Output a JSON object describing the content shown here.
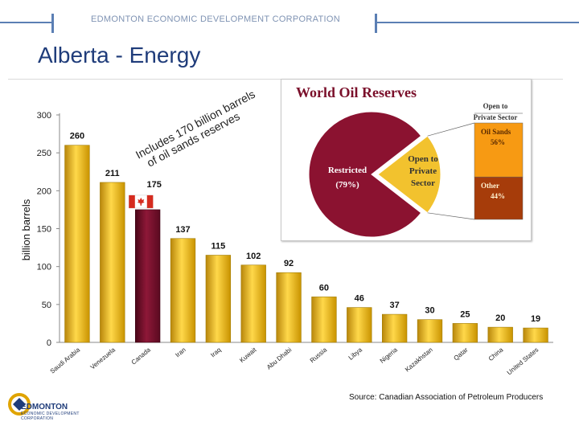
{
  "header": {
    "org_name": "EDMONTON ECONOMIC DEVELOPMENT CORPORATION",
    "title": "Alberta - Energy"
  },
  "source": "Source: Canadian Association of Petroleum Producers",
  "logo": {
    "line1": "EDMONTON",
    "line2": "ECONOMIC DEVELOPMENT",
    "line3": "CORPORATION"
  },
  "chart_data": [
    {
      "type": "bar",
      "title": "",
      "xlabel": "",
      "ylabel": "billion barrels",
      "ylim": [
        0,
        300
      ],
      "yticks": [
        "0",
        "50",
        "100",
        "150",
        "200",
        "250",
        "300"
      ],
      "categories": [
        "Saudi Arabia",
        "Venezuela",
        "Canada",
        "Iran",
        "Iraq",
        "Kuwait",
        "Abu Dhabi",
        "Russia",
        "Libya",
        "Nigeria",
        "Kazakhstan",
        "Qatar",
        "China",
        "United States"
      ],
      "values": [
        260,
        211,
        175,
        137,
        115,
        102,
        92,
        60,
        46,
        37,
        30,
        25,
        20,
        19
      ],
      "data_labels": [
        "260",
        "211",
        "175",
        "137",
        "115",
        "102",
        "92",
        "60",
        "46",
        "37",
        "30",
        "25",
        "20",
        "19"
      ],
      "highlight_category": "Canada",
      "annotation": [
        "Includes 170 billion barrels",
        "of oil sands reserves"
      ],
      "colors": {
        "bar": "#e8b810",
        "highlight": "#7a0f2a"
      },
      "grid": false
    },
    {
      "type": "pie",
      "title": "World Oil Reserves",
      "slices": [
        {
          "label": [
            "Restricted",
            "(79%)"
          ],
          "value": 79,
          "color": "#8b1230"
        },
        {
          "label": [
            "Open to",
            "Private",
            "Sector"
          ],
          "value": 21,
          "color": "#f2c22e"
        }
      ],
      "breakdown": {
        "header": [
          "Open to",
          "Private Sector"
        ],
        "items": [
          {
            "label": [
              "Oil Sands",
              "56%"
            ],
            "value": 56,
            "color": "#f79a13"
          },
          {
            "label": [
              "Other",
              "44%"
            ],
            "value": 44,
            "color": "#a63c0a"
          }
        ]
      }
    }
  ]
}
